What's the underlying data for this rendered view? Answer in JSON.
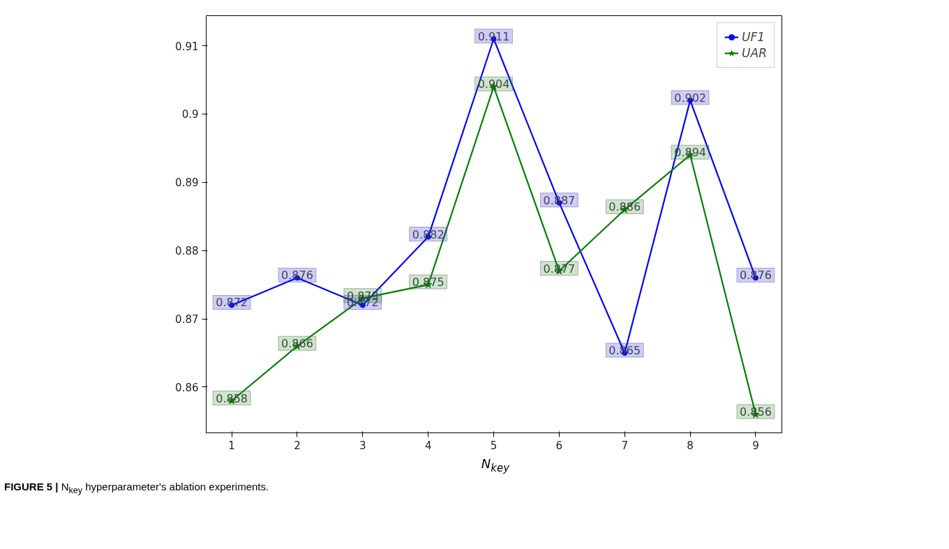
{
  "chart_data": {
    "type": "line",
    "x": [
      1,
      2,
      3,
      4,
      5,
      6,
      7,
      8,
      9
    ],
    "xlabel": "N$_{key}$",
    "series": [
      {
        "name": "UF1",
        "color": "#0000ff",
        "marker": "circle",
        "values": [
          0.872,
          0.876,
          0.872,
          0.882,
          0.911,
          0.887,
          0.865,
          0.902,
          0.876
        ]
      },
      {
        "name": "UAR",
        "color": "#008000",
        "marker": "star",
        "values": [
          0.858,
          0.866,
          0.873,
          0.875,
          0.904,
          0.877,
          0.886,
          0.894,
          0.856
        ]
      }
    ],
    "xlim": [
      0.61,
      9.4
    ],
    "ylim": [
      0.8533,
      0.9144
    ],
    "xticks": [
      1,
      2,
      3,
      4,
      5,
      6,
      7,
      8,
      9
    ],
    "yticks": [
      0.86,
      0.87,
      0.88,
      0.89,
      0.9,
      0.91
    ],
    "data_labels": true,
    "legend": "top right",
    "grid": false,
    "line_style": "solid",
    "annotations": [
      "FIGURE 5 | N$_{key}$ hyperparameter's ablation experiments."
    ]
  }
}
